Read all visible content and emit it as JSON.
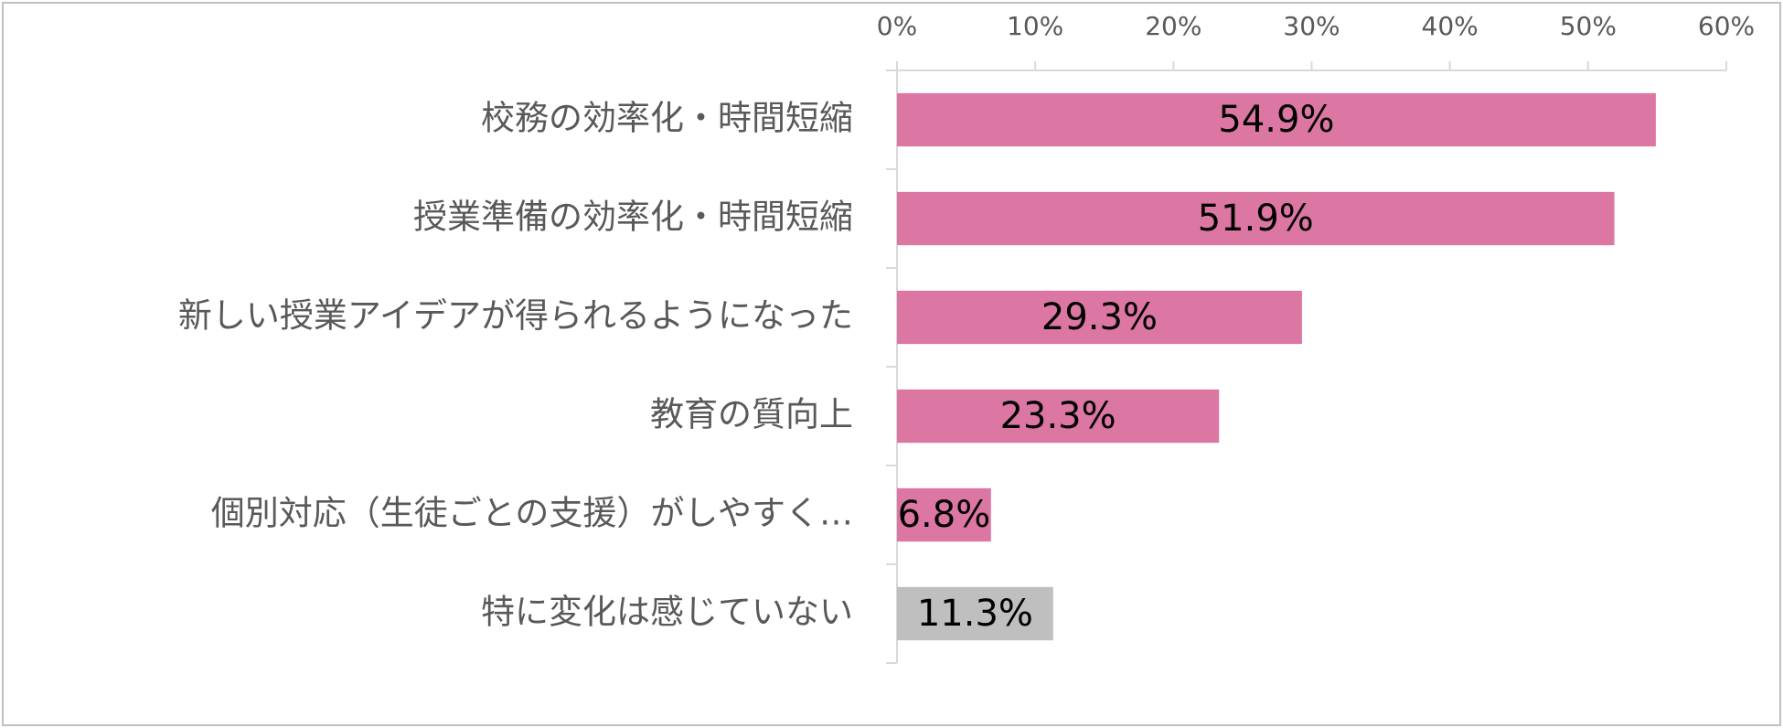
{
  "chart_data": {
    "type": "bar",
    "orientation": "horizontal",
    "categories": [
      "校務の効率化・時間短縮",
      "授業準備の効率化・時間短縮",
      "新しい授業アイデアが得られるようになった",
      "教育の質向上",
      "個別対応（生徒ごとの支援）がしやすく…",
      "特に変化は感じていない"
    ],
    "values": [
      54.9,
      51.9,
      29.3,
      23.3,
      6.8,
      11.3
    ],
    "value_labels": [
      "54.9%",
      "51.9%",
      "29.3%",
      "23.3%",
      "6.8%",
      "11.3%"
    ],
    "colors": [
      "#dc77a3",
      "#dc77a3",
      "#dc77a3",
      "#dc77a3",
      "#dc77a3",
      "#bfbfbf"
    ],
    "xlim": [
      0,
      60
    ],
    "xticks": [
      {
        "value": 0,
        "label": "0%"
      },
      {
        "value": 10,
        "label": "10%"
      },
      {
        "value": 20,
        "label": "20%"
      },
      {
        "value": 30,
        "label": "30%"
      },
      {
        "value": 40,
        "label": "40%"
      },
      {
        "value": 50,
        "label": "50%"
      },
      {
        "value": 60,
        "label": "60%"
      }
    ],
    "grid": false
  }
}
